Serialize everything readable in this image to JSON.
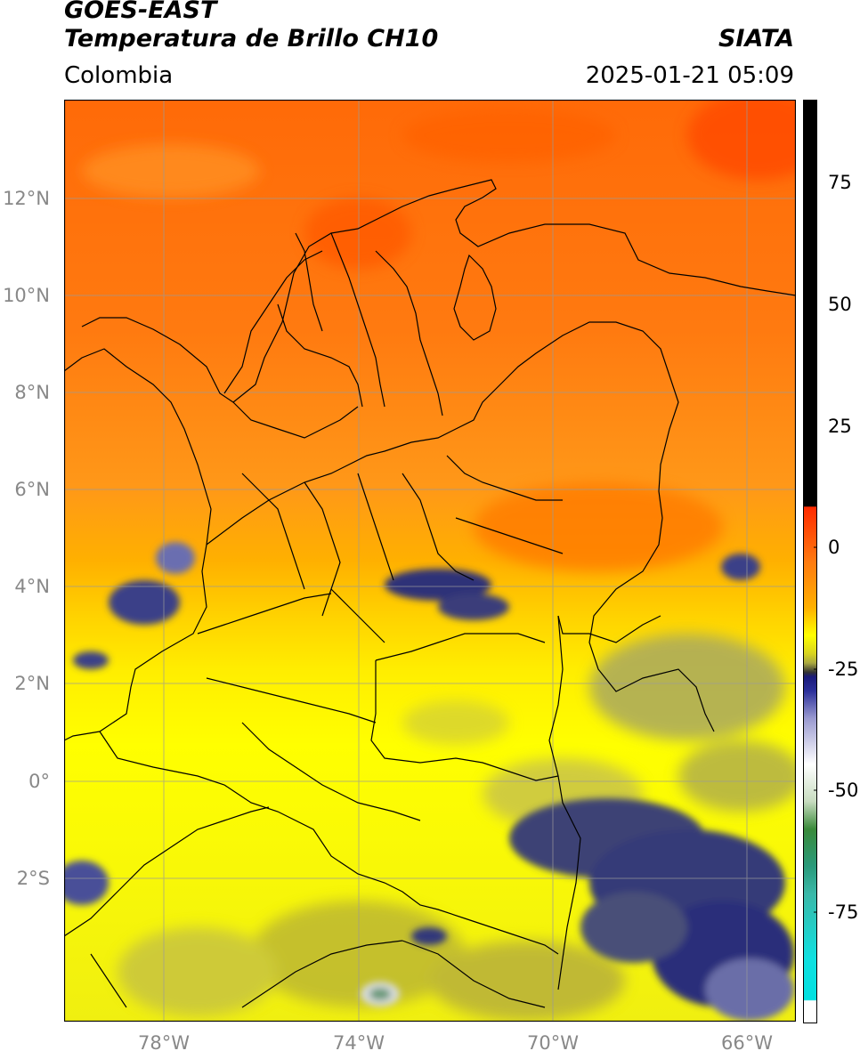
{
  "header": {
    "satellite": "GOES-EAST",
    "product": "Temperatura de Brillo CH10",
    "agency": "SIATA",
    "region": "Colombia",
    "datetime": "2025-01-21 05:09"
  },
  "map": {
    "lat_labels": [
      "12°N",
      "10°N",
      "8°N",
      "6°N",
      "4°N",
      "2°N",
      "0°",
      "2°S"
    ],
    "lon_labels": [
      "78°W",
      "74°W",
      "70°W",
      "66°W"
    ],
    "colors": {
      "warm_orange": "#ff7a10",
      "orange": "#ffa020",
      "yellow": "#ffff00",
      "olive": "#bdb832",
      "navy": "#2b2f7a",
      "gray_navy": "#4a4f78"
    }
  },
  "colorbar": {
    "ticks": [
      "75",
      "50",
      "25",
      "0",
      "-25",
      "-50",
      "-75"
    ]
  }
}
